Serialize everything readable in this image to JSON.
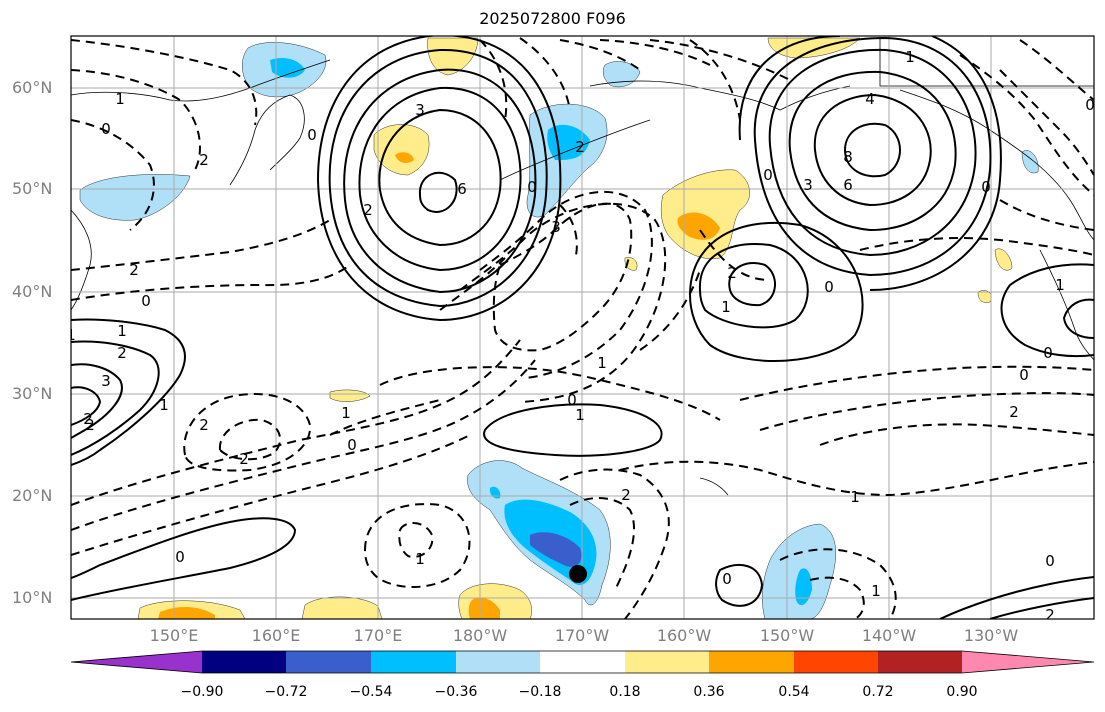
{
  "title": "2025072800 F096",
  "lat_labels": [
    "60°N",
    "50°N",
    "40°N",
    "30°N",
    "20°N",
    "10°N"
  ],
  "lon_labels": [
    "150°E",
    "160°E",
    "170°E",
    "180°W",
    "170°W",
    "160°W",
    "150°W",
    "140°W",
    "130°W"
  ],
  "colorbar": {
    "ticks": [
      "−0.90",
      "−0.72",
      "−0.54",
      "−0.36",
      "−0.18",
      "0.18",
      "0.36",
      "0.54",
      "0.72",
      "0.90"
    ],
    "colors": [
      "#9932cc",
      "#000080",
      "#3a5fcd",
      "#00bfff",
      "#b0e0f8",
      "#ffffff",
      "#ffec8b",
      "#ffa500",
      "#ff4500",
      "#b22222",
      "#ff88b0"
    ]
  },
  "contour_labels": [
    "3",
    "6",
    "2",
    "2",
    "0",
    "3",
    "4",
    "8",
    "6",
    "3",
    "0",
    "2",
    "1",
    "0",
    "2",
    "1",
    "0",
    "1",
    "2",
    "3",
    "1",
    "2",
    "0",
    "1",
    "0",
    "2",
    "1",
    "0",
    "0",
    "2",
    "1",
    "0",
    "1",
    "2",
    "1",
    "0",
    "1",
    "2",
    "0",
    "1",
    "0",
    "0",
    "1",
    "2",
    "0",
    "2",
    "2",
    "1",
    "0"
  ]
}
